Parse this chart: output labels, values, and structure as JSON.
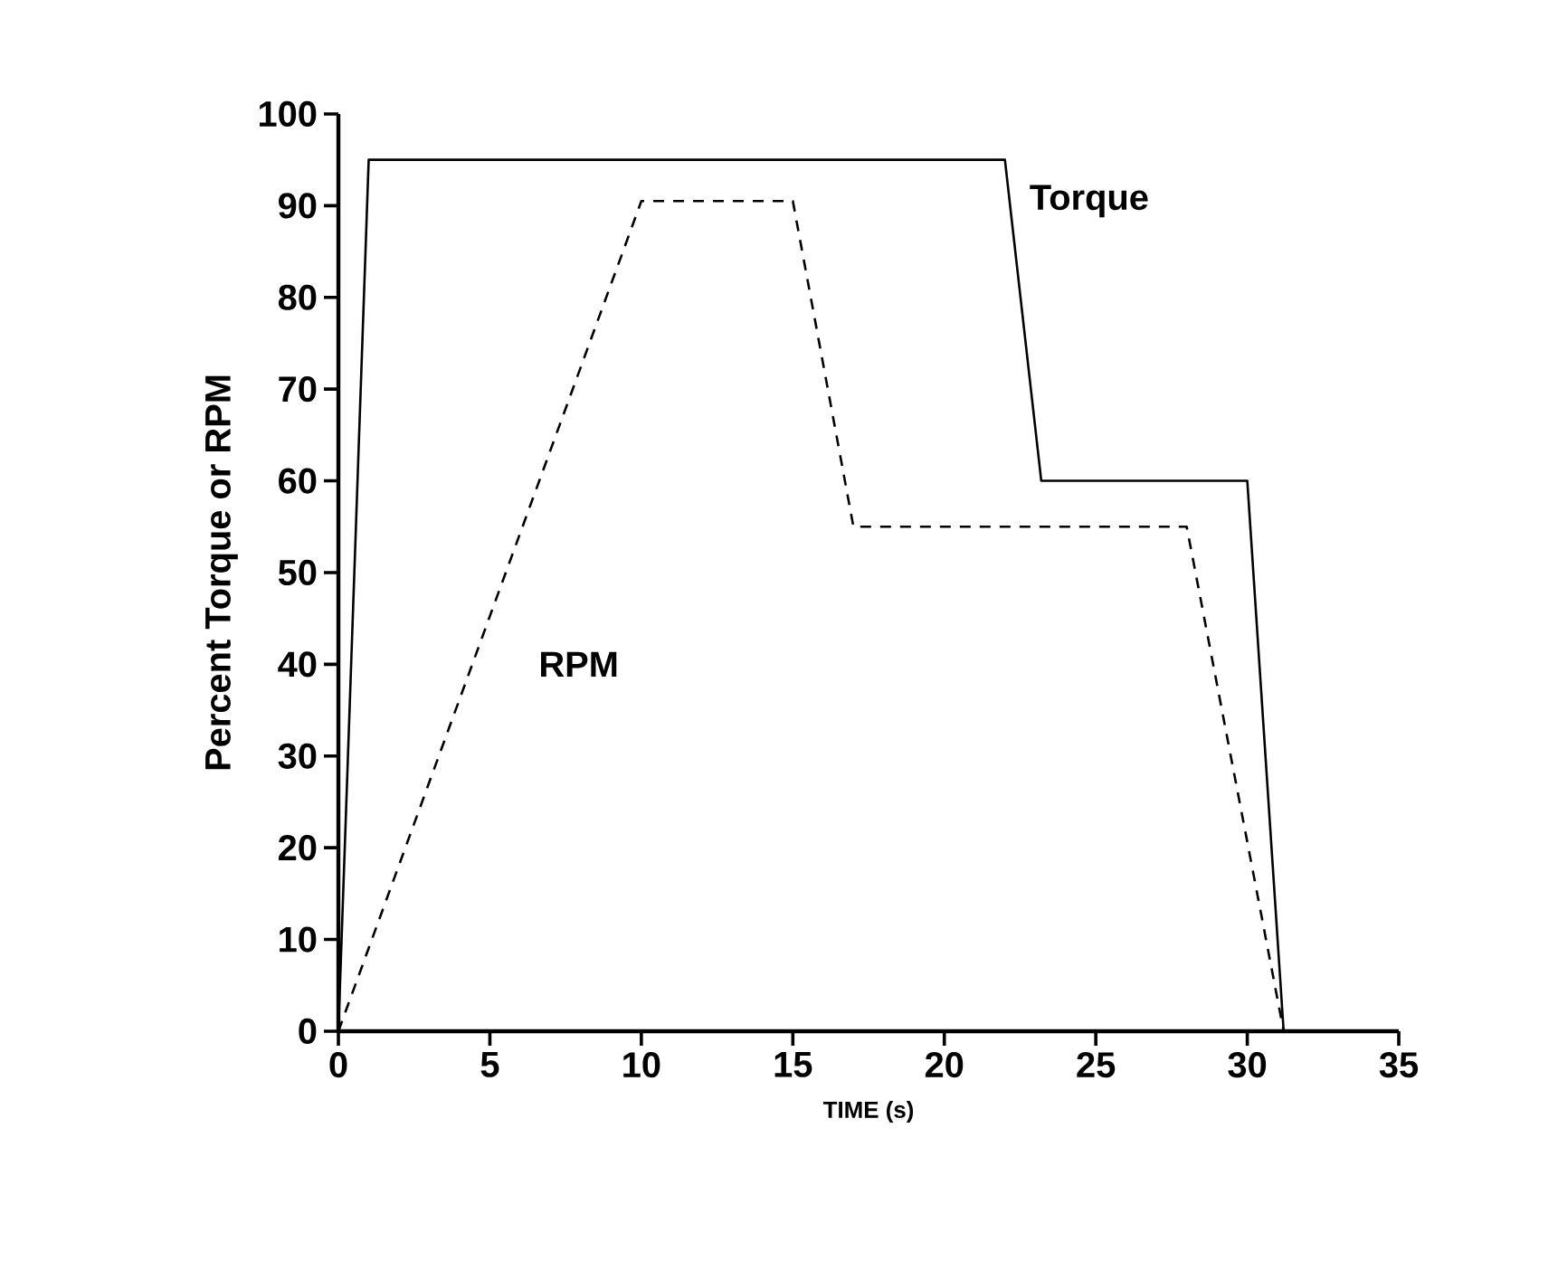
{
  "chart_data": {
    "type": "line",
    "xlabel": "TIME (s)",
    "ylabel": "Percent Torque or RPM",
    "series": [
      {
        "name": "Torque",
        "color": "#000000",
        "line_style": "solid",
        "x": [
          0,
          1,
          22,
          23.2,
          30,
          31.2
        ],
        "values": [
          0,
          95,
          95,
          60,
          60,
          0
        ]
      },
      {
        "name": "RPM",
        "color": "#000000",
        "line_style": "dashed",
        "x": [
          0,
          10,
          15,
          17,
          28,
          31.2
        ],
        "values": [
          0,
          90.5,
          90.5,
          55,
          55,
          0
        ]
      }
    ],
    "xlim": [
      0,
      35
    ],
    "ylim": [
      0,
      100
    ],
    "xticks": [
      0,
      5,
      10,
      15,
      20,
      25,
      30,
      35
    ],
    "yticks": [
      0,
      10,
      20,
      30,
      40,
      50,
      60,
      70,
      80,
      90,
      100
    ],
    "grid": false,
    "legend": false,
    "marker": "none"
  }
}
